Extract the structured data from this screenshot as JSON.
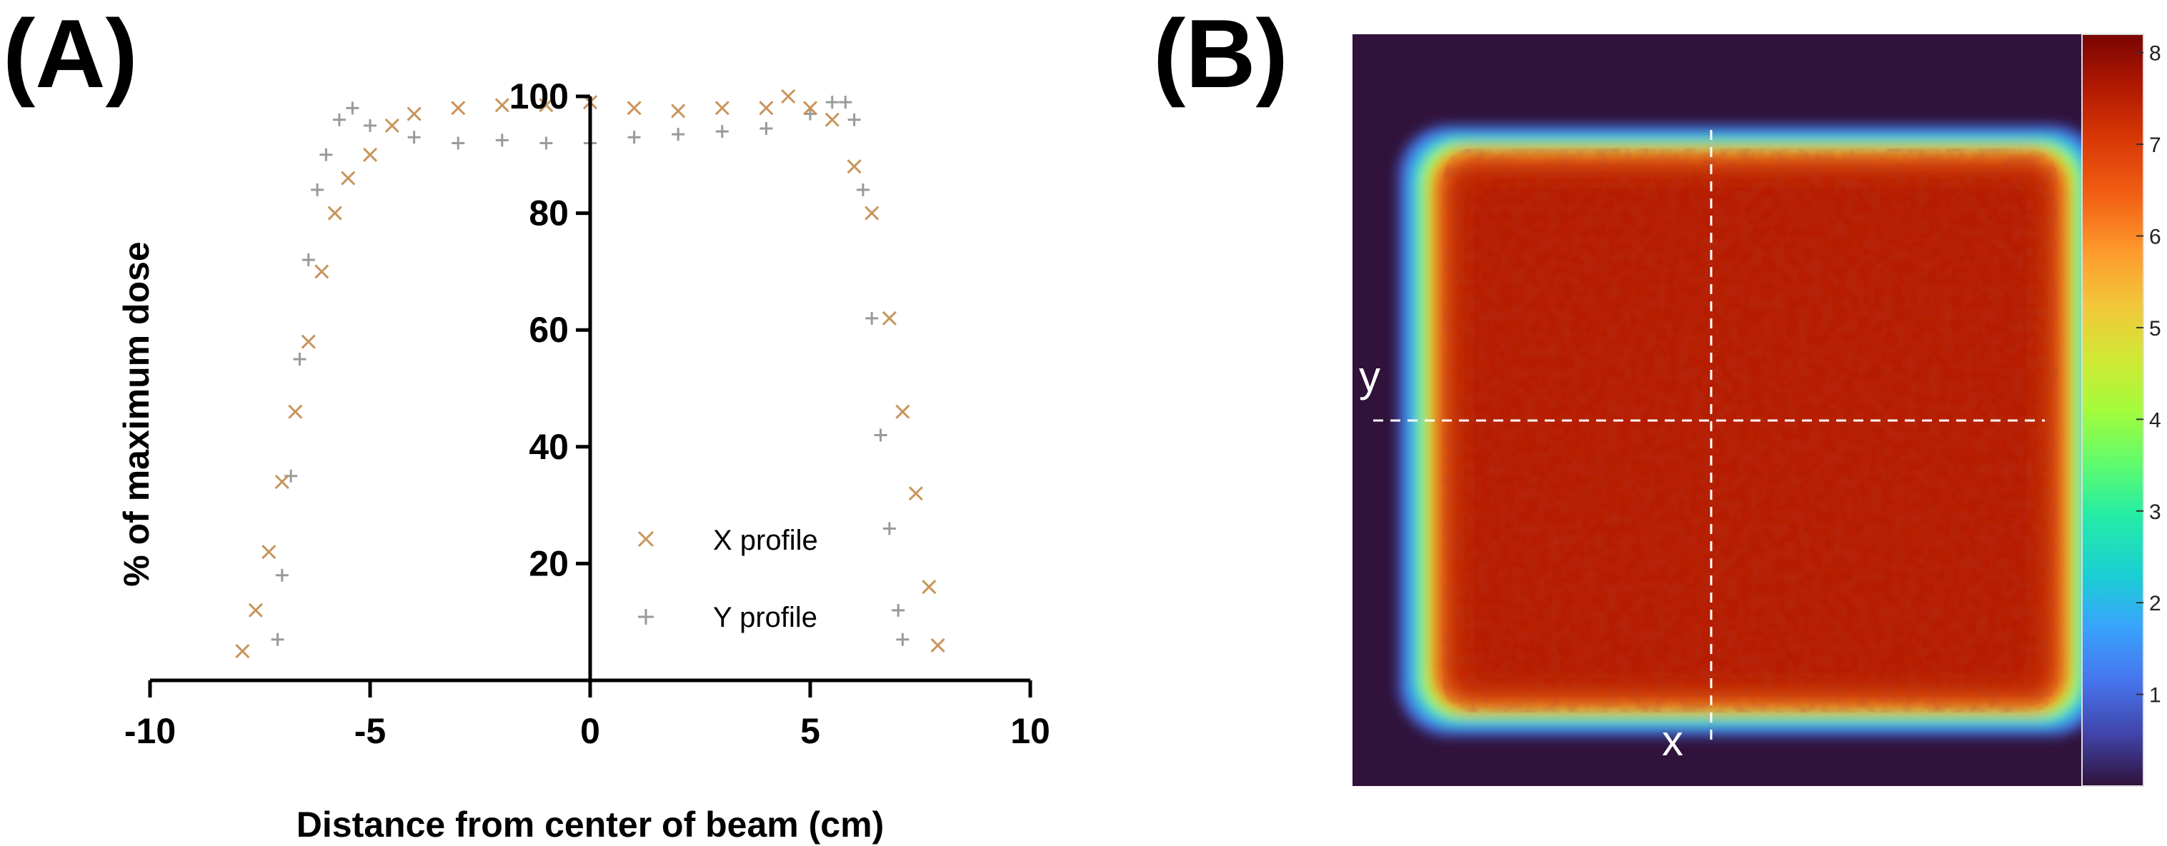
{
  "chart_data": [
    {
      "panel": "(A)",
      "type": "scatter",
      "xlabel": "Distance from center of beam (cm)",
      "ylabel": "% of maximum dose",
      "xlim": [
        -10,
        10
      ],
      "ylim": [
        0,
        100
      ],
      "x_ticks": [
        -10,
        -5,
        0,
        5,
        10
      ],
      "x_tick_labels": [
        "-10",
        "-5",
        "0",
        "5",
        "10"
      ],
      "y_ticks": [
        20,
        40,
        60,
        80,
        100
      ],
      "y_tick_labels": [
        "20",
        "40",
        "60",
        "80",
        "100"
      ],
      "legend_position": "lower-right",
      "series": [
        {
          "name": "X profile",
          "marker": "x",
          "color": "#C8955C",
          "points": [
            [
              -7.9,
              5
            ],
            [
              -7.6,
              12
            ],
            [
              -7.3,
              22
            ],
            [
              -7.0,
              34
            ],
            [
              -6.7,
              46
            ],
            [
              -6.4,
              58
            ],
            [
              -6.1,
              70
            ],
            [
              -5.8,
              80
            ],
            [
              -5.5,
              86
            ],
            [
              -5.0,
              90
            ],
            [
              -4.5,
              95
            ],
            [
              -4.0,
              97
            ],
            [
              -3.0,
              98
            ],
            [
              -2.0,
              98.5
            ],
            [
              -1.0,
              98.5
            ],
            [
              0.0,
              99
            ],
            [
              1.0,
              98
            ],
            [
              2.0,
              97.5
            ],
            [
              3.0,
              98
            ],
            [
              4.0,
              98
            ],
            [
              4.5,
              100
            ],
            [
              5.0,
              98
            ],
            [
              5.5,
              96
            ],
            [
              6.0,
              88
            ],
            [
              6.4,
              80
            ],
            [
              6.8,
              62
            ],
            [
              7.1,
              46
            ],
            [
              7.4,
              32
            ],
            [
              7.7,
              16
            ],
            [
              7.9,
              6
            ]
          ]
        },
        {
          "name": "Y profile",
          "marker": "+",
          "color": "#9A9A9A",
          "points": [
            [
              -7.1,
              7
            ],
            [
              -7.0,
              18
            ],
            [
              -6.8,
              35
            ],
            [
              -6.6,
              55
            ],
            [
              -6.4,
              72
            ],
            [
              -6.2,
              84
            ],
            [
              -6.0,
              90
            ],
            [
              -5.7,
              96
            ],
            [
              -5.4,
              98
            ],
            [
              -5.0,
              95
            ],
            [
              -4.0,
              93
            ],
            [
              -3.0,
              92
            ],
            [
              -2.0,
              92.5
            ],
            [
              -1.0,
              92
            ],
            [
              0.0,
              92
            ],
            [
              1.0,
              93
            ],
            [
              2.0,
              93.5
            ],
            [
              3.0,
              94
            ],
            [
              4.0,
              94.5
            ],
            [
              5.0,
              97
            ],
            [
              5.5,
              99
            ],
            [
              5.8,
              99
            ],
            [
              6.0,
              96
            ],
            [
              6.2,
              84
            ],
            [
              6.4,
              62
            ],
            [
              6.6,
              42
            ],
            [
              6.8,
              26
            ],
            [
              7.0,
              12
            ],
            [
              7.1,
              7
            ]
          ]
        }
      ]
    },
    {
      "panel": "(B)",
      "type": "heatmap",
      "colorbar_ticks": [
        1,
        2,
        3,
        4,
        5,
        6,
        7,
        8
      ],
      "colorbar_tick_labels": [
        "1",
        "2",
        "3",
        "4",
        "5",
        "6",
        "7",
        "8"
      ],
      "colorbar_range": [
        0,
        8.2
      ],
      "colormap": "turbo",
      "field_level": 7.2,
      "background_level": 0,
      "crosshair_labels": {
        "x": "x",
        "y": "y"
      }
    }
  ]
}
